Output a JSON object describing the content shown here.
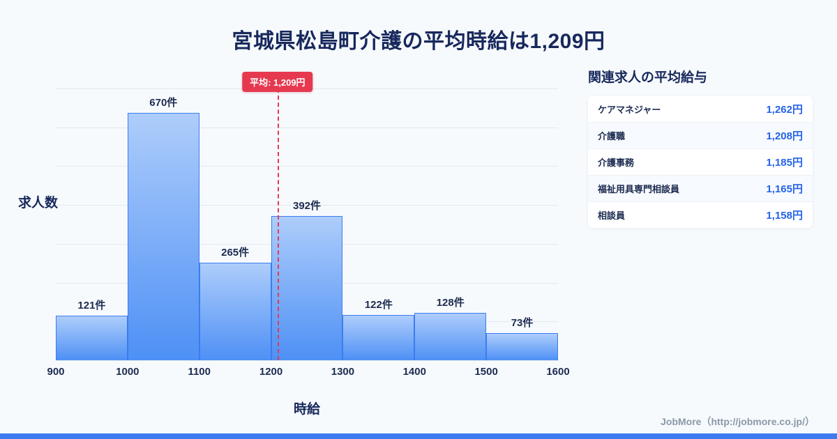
{
  "title": "宮城県松島町介護の平均時給は1,209円",
  "chart_data": {
    "type": "bar",
    "title": "宮城県松島町介護の平均時給は1,209円",
    "xlabel": "時給",
    "ylabel": "求人数",
    "bin_edges": [
      900,
      1000,
      1100,
      1200,
      1300,
      1400,
      1500,
      1600
    ],
    "categories": [
      "900-1000",
      "1000-1100",
      "1100-1200",
      "1200-1300",
      "1300-1400",
      "1400-1500",
      "1500-1600"
    ],
    "values": [
      121,
      670,
      265,
      392,
      122,
      128,
      73
    ],
    "value_labels": [
      "121件",
      "670件",
      "265件",
      "392件",
      "122件",
      "128件",
      "73件"
    ],
    "average": 1209,
    "average_label": "平均: 1,209円",
    "xlim": [
      900,
      1600
    ],
    "ylim": [
      0,
      737
    ],
    "grid": true,
    "legend": "none",
    "bar_color_top": "#aecdfb",
    "bar_color_bottom": "#4e90f5",
    "bar_border_color": "#3b7cf0",
    "average_line_color": "#e63950"
  },
  "panel": {
    "title": "関連求人の平均給与",
    "rows": [
      {
        "label": "ケアマネジャー",
        "value": "1,262円"
      },
      {
        "label": "介護職",
        "value": "1,208円"
      },
      {
        "label": "介護事務",
        "value": "1,185円"
      },
      {
        "label": "福祉用具専門相談員",
        "value": "1,165円"
      },
      {
        "label": "相談員",
        "value": "1,158円"
      }
    ]
  },
  "footer": {
    "credit": "JobMore（http://jobmore.co.jp/）"
  },
  "colors": {
    "accent_red": "#e63950",
    "accent_blue": "#2563e8",
    "title_navy": "#17285c",
    "bottom_bar": "#3e7bf1"
  }
}
